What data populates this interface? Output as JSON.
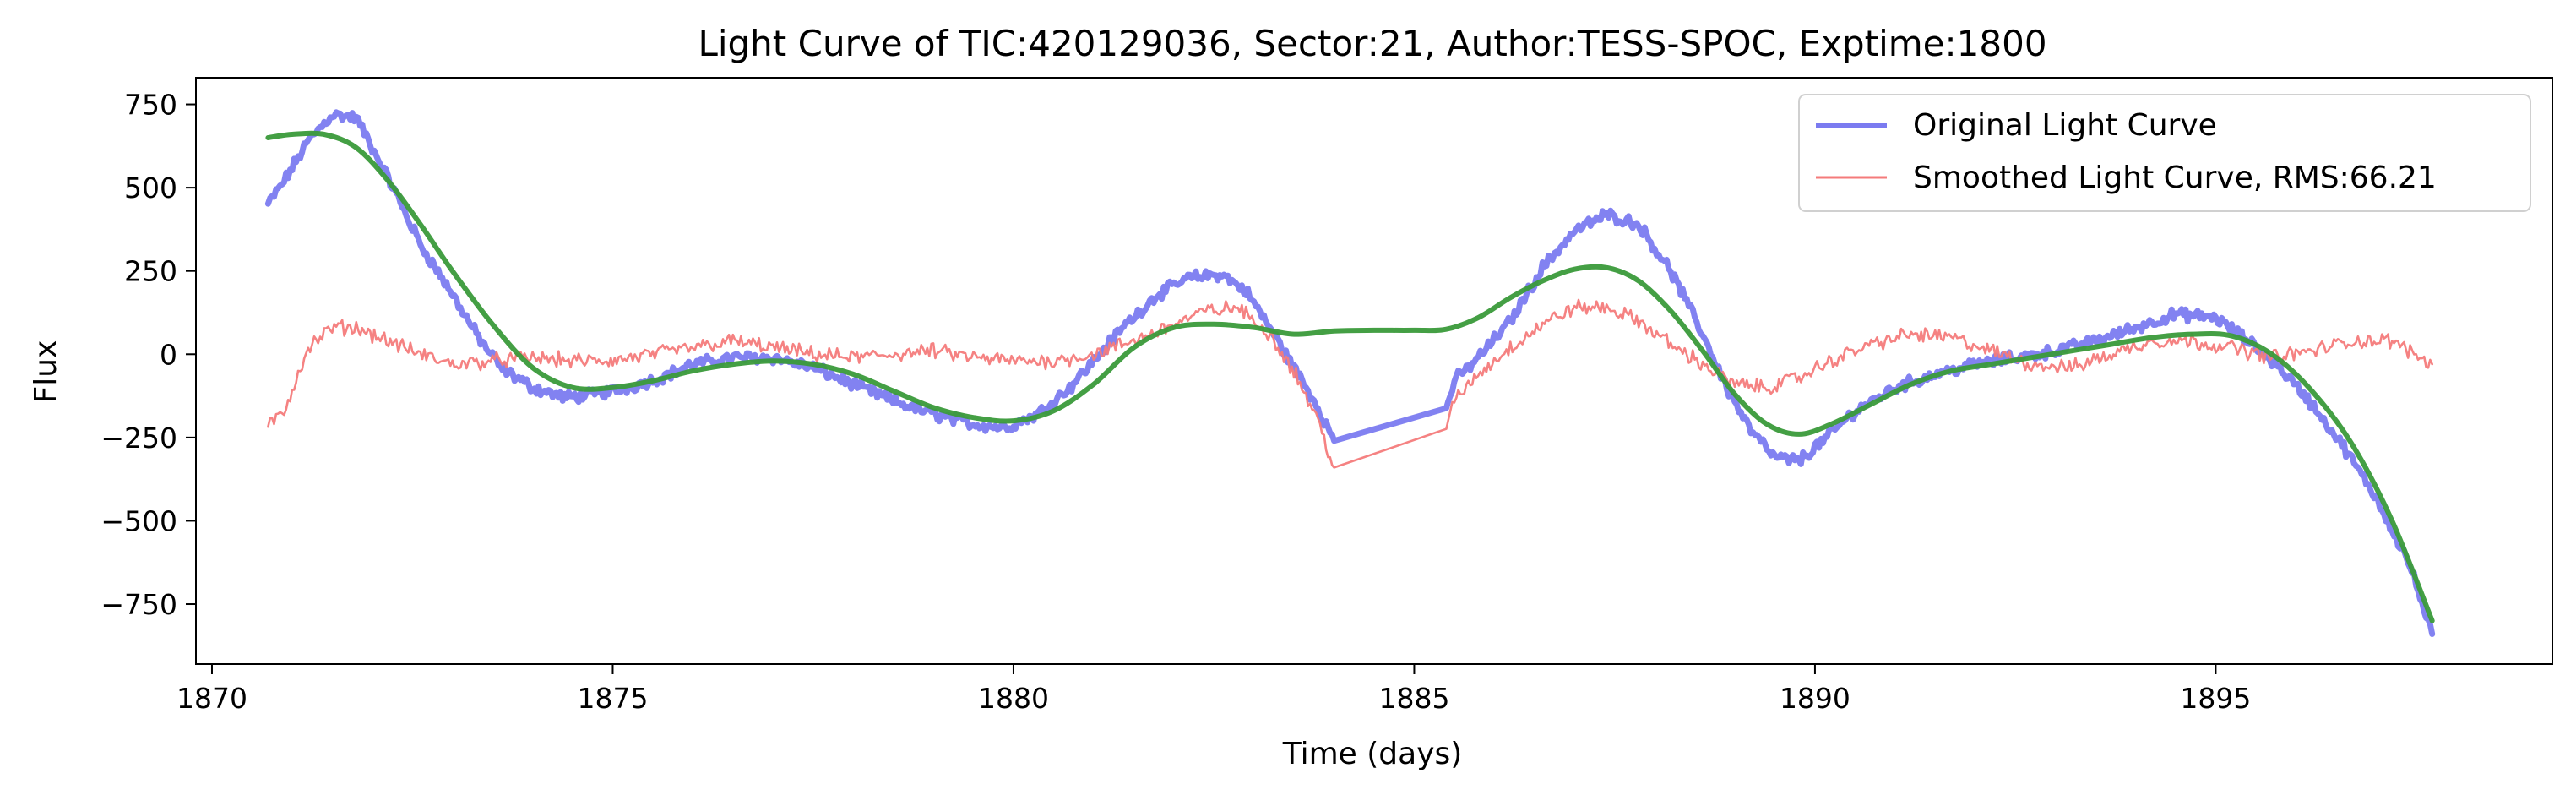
{
  "chart_data": {
    "type": "line",
    "title": "Light Curve of TIC:420129036, Sector:21, Author:TESS-SPOC, Exptime:1800",
    "xlabel": "Time (days)",
    "ylabel": "Flux",
    "xlim": [
      1869.8,
      1899.2
    ],
    "ylim": [
      -930,
      830
    ],
    "xticks": [
      1870,
      1875,
      1880,
      1885,
      1890,
      1895
    ],
    "xtick_labels": [
      "1870",
      "1875",
      "1880",
      "1885",
      "1890",
      "1895"
    ],
    "yticks": [
      750,
      500,
      250,
      0,
      -250,
      -500,
      -750
    ],
    "ytick_labels": [
      "750",
      "500",
      "250",
      "0",
      "−250",
      "−500",
      "−750"
    ],
    "grid": false,
    "legend_position": "top-right",
    "series": [
      {
        "name": "Original Light Curve",
        "color": "#7b7bf0",
        "style": "noisy",
        "noise": 14,
        "x": [
          1870.7,
          1870.9,
          1871.2,
          1871.5,
          1871.8,
          1872.0,
          1872.3,
          1872.6,
          1873.0,
          1873.3,
          1873.6,
          1874.0,
          1874.4,
          1874.8,
          1875.2,
          1875.6,
          1876.0,
          1876.5,
          1877.0,
          1877.5,
          1878.0,
          1878.5,
          1879.0,
          1879.5,
          1879.9,
          1880.3,
          1880.7,
          1881.0,
          1881.4,
          1881.8,
          1882.2,
          1882.6,
          1882.9,
          1883.2,
          1883.5,
          1883.8,
          1884.0,
          1885.4,
          1885.5,
          1885.8,
          1886.2,
          1886.6,
          1887.0,
          1887.4,
          1887.8,
          1888.2,
          1888.6,
          1888.9,
          1889.2,
          1889.5,
          1889.8,
          1890.1,
          1890.5,
          1891.0,
          1891.5,
          1892.0,
          1892.5,
          1893.0,
          1893.5,
          1894.0,
          1894.5,
          1895.0,
          1895.4,
          1895.8,
          1896.2,
          1896.6,
          1897.0,
          1897.4,
          1897.7
        ],
        "y": [
          450,
          520,
          640,
          720,
          710,
          620,
          480,
          330,
          180,
          60,
          -40,
          -100,
          -130,
          -120,
          -100,
          -70,
          -30,
          -10,
          -10,
          -40,
          -90,
          -140,
          -180,
          -210,
          -220,
          -180,
          -100,
          -20,
          90,
          180,
          230,
          240,
          190,
          80,
          -40,
          -160,
          -260,
          -160,
          -80,
          -10,
          100,
          260,
          370,
          420,
          390,
          250,
          60,
          -100,
          -230,
          -310,
          -320,
          -260,
          -170,
          -100,
          -60,
          -30,
          -10,
          10,
          40,
          80,
          120,
          110,
          40,
          -40,
          -150,
          -280,
          -430,
          -620,
          -840
        ]
      },
      {
        "name": "Smoothed Light Curve, RMS:66.21",
        "color": "#f47b7b",
        "style": "noisy",
        "noise": 18,
        "x": [
          1870.7,
          1870.9,
          1871.2,
          1871.5,
          1871.8,
          1872.2,
          1872.6,
          1873.0,
          1873.5,
          1874.0,
          1874.5,
          1875.0,
          1875.5,
          1876.0,
          1876.5,
          1877.0,
          1877.5,
          1878.0,
          1878.5,
          1879.0,
          1879.5,
          1880.0,
          1880.5,
          1881.0,
          1881.5,
          1882.0,
          1882.4,
          1882.8,
          1883.2,
          1883.5,
          1883.8,
          1884.0,
          1885.4,
          1885.5,
          1885.8,
          1886.2,
          1886.6,
          1887.0,
          1887.4,
          1887.8,
          1888.2,
          1888.6,
          1889.0,
          1889.4,
          1889.8,
          1890.2,
          1890.7,
          1891.2,
          1891.7,
          1892.2,
          1892.7,
          1893.2,
          1893.7,
          1894.2,
          1894.7,
          1895.2,
          1895.7,
          1896.2,
          1896.7,
          1897.2,
          1897.7
        ],
        "y": [
          -220,
          -170,
          20,
          80,
          80,
          40,
          0,
          -30,
          -20,
          -10,
          -20,
          -20,
          0,
          20,
          40,
          20,
          0,
          -10,
          0,
          10,
          -10,
          -20,
          -20,
          0,
          40,
          90,
          130,
          140,
          60,
          -50,
          -200,
          -340,
          -230,
          -140,
          -60,
          20,
          90,
          140,
          140,
          100,
          30,
          -30,
          -90,
          -100,
          -70,
          -20,
          30,
          60,
          50,
          10,
          -30,
          -40,
          0,
          40,
          40,
          20,
          -10,
          10,
          40,
          40,
          -30
        ]
      },
      {
        "name": "",
        "color": "#3a9a3a",
        "style": "smooth",
        "x": [
          1870.7,
          1871.0,
          1871.4,
          1871.8,
          1872.2,
          1872.6,
          1873.0,
          1873.5,
          1874.0,
          1874.5,
          1875.0,
          1875.5,
          1876.0,
          1876.5,
          1877.0,
          1877.5,
          1878.0,
          1878.5,
          1879.0,
          1879.5,
          1880.0,
          1880.5,
          1881.0,
          1881.5,
          1882.0,
          1882.5,
          1883.0,
          1883.5,
          1884.0,
          1884.5,
          1885.0,
          1885.4,
          1885.8,
          1886.2,
          1886.6,
          1887.0,
          1887.4,
          1887.8,
          1888.2,
          1888.6,
          1889.0,
          1889.4,
          1889.8,
          1890.2,
          1890.7,
          1891.2,
          1891.7,
          1892.2,
          1892.7,
          1893.2,
          1893.7,
          1894.2,
          1894.7,
          1895.2,
          1895.7,
          1896.2,
          1896.7,
          1897.2,
          1897.7
        ],
        "y": [
          650,
          660,
          660,
          620,
          520,
          390,
          250,
          90,
          -40,
          -100,
          -100,
          -80,
          -50,
          -30,
          -20,
          -30,
          -60,
          -110,
          -160,
          -190,
          -200,
          -170,
          -90,
          20,
          80,
          90,
          80,
          60,
          70,
          72,
          72,
          75,
          110,
          170,
          220,
          255,
          260,
          220,
          130,
          10,
          -120,
          -210,
          -240,
          -210,
          -150,
          -90,
          -50,
          -30,
          -10,
          10,
          30,
          50,
          60,
          55,
          0,
          -110,
          -270,
          -500,
          -800
        ]
      }
    ]
  }
}
